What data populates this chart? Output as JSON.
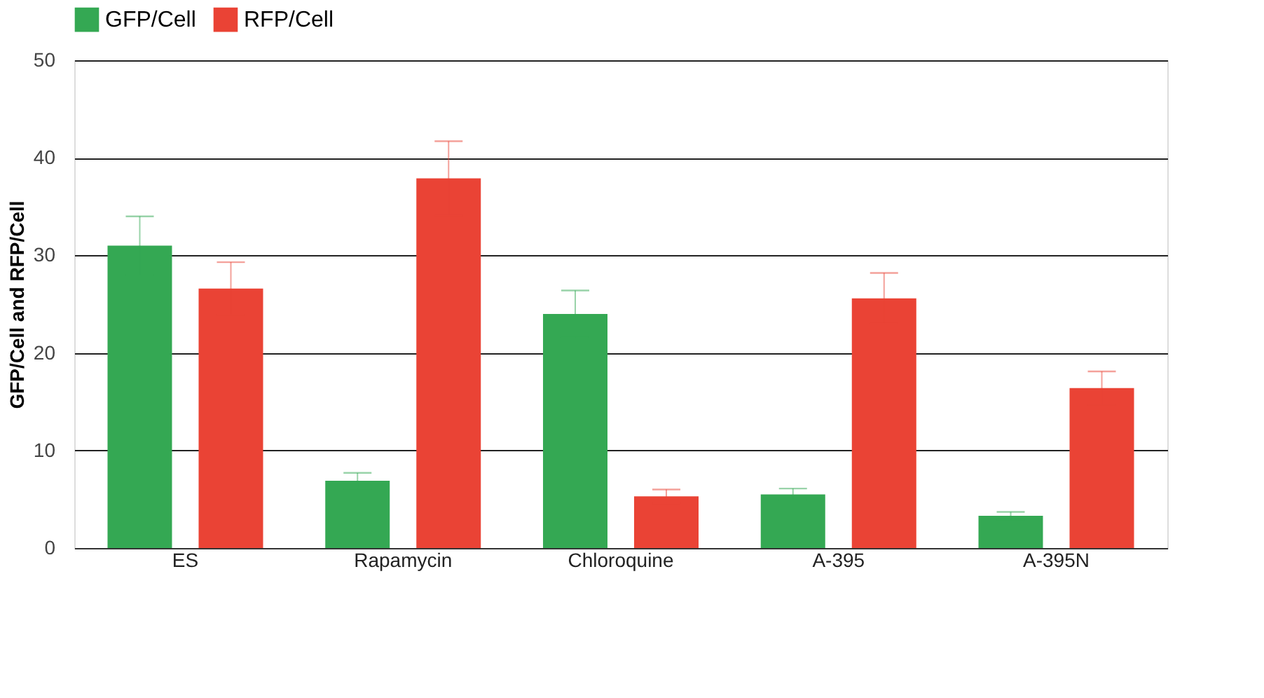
{
  "chart_data": {
    "type": "bar",
    "ylabel": "GFP/Cell and RFP/Cell",
    "categories": [
      "ES",
      "Rapamycin",
      "Chloroquine",
      "A-395",
      "A-395N"
    ],
    "series": [
      {
        "name": "GFP/Cell",
        "color": "#34a853",
        "values": [
          31,
          6.9,
          24,
          5.5,
          3.3
        ],
        "errors": [
          3,
          0.8,
          2.4,
          0.6,
          0.4
        ]
      },
      {
        "name": "RFP/Cell",
        "color": "#ea4335",
        "values": [
          26.6,
          37.9,
          5.3,
          25.6,
          16.4
        ],
        "errors": [
          2.7,
          3.8,
          0.7,
          2.6,
          1.7
        ]
      }
    ],
    "ylim": [
      0,
      50
    ],
    "yticks": [
      0,
      10,
      20,
      30,
      40,
      50
    ],
    "grid": "y",
    "legend": "top"
  }
}
